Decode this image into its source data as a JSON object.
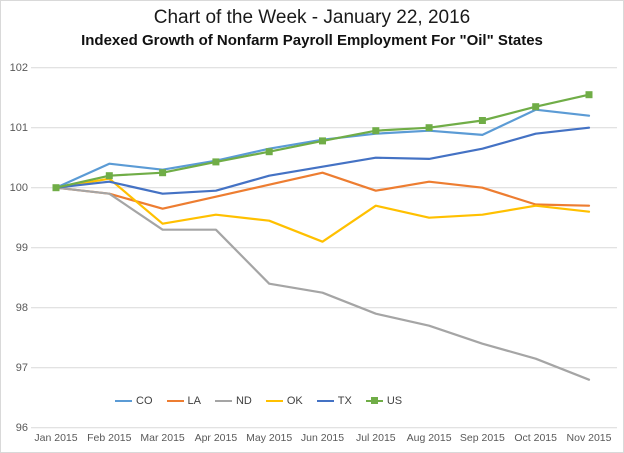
{
  "title": "Chart of the Week - January 22, 2016",
  "subtitle": "Indexed Growth of Nonfarm Payroll Employment For \"Oil\" States",
  "colors": {
    "gridline": "#d9d9d9",
    "axis_text": "#595959",
    "legend_text": "#404040"
  },
  "chart_data": {
    "type": "line",
    "title": "Chart of the Week - January 22, 2016",
    "subtitle": "Indexed Growth of Nonfarm Payroll Employment For \"Oil\" States",
    "xlabel": "",
    "ylabel": "",
    "ylim": [
      96,
      102
    ],
    "yticks": [
      96,
      97,
      98,
      99,
      100,
      101,
      102
    ],
    "grid": true,
    "legend_position": "bottom-inside",
    "categories": [
      "Jan 2015",
      "Feb 2015",
      "Mar 2015",
      "Apr 2015",
      "May 2015",
      "Jun 2015",
      "Jul 2015",
      "Aug 2015",
      "Sep 2015",
      "Oct 2015",
      "Nov 2015"
    ],
    "series": [
      {
        "name": "CO",
        "color": "#5B9BD5",
        "marker": "none",
        "values": [
          100,
          100.4,
          100.3,
          100.45,
          100.65,
          100.8,
          100.9,
          100.95,
          100.88,
          101.3,
          101.2
        ]
      },
      {
        "name": "LA",
        "color": "#ED7D31",
        "marker": "none",
        "values": [
          100,
          99.9,
          99.65,
          99.85,
          100.05,
          100.25,
          99.95,
          100.1,
          100.0,
          99.72,
          99.7
        ]
      },
      {
        "name": "ND",
        "color": "#A5A5A5",
        "marker": "none",
        "values": [
          100,
          99.9,
          99.3,
          99.3,
          98.4,
          98.25,
          97.9,
          97.7,
          97.4,
          97.15,
          96.8
        ]
      },
      {
        "name": "OK",
        "color": "#FFC000",
        "marker": "none",
        "values": [
          100,
          100.15,
          99.4,
          99.55,
          99.45,
          99.1,
          99.7,
          99.5,
          99.55,
          99.7,
          99.6
        ]
      },
      {
        "name": "TX",
        "color": "#4472C4",
        "marker": "none",
        "values": [
          100,
          100.1,
          99.9,
          99.95,
          100.2,
          100.35,
          100.5,
          100.48,
          100.65,
          100.9,
          101.0
        ]
      },
      {
        "name": "US",
        "color": "#70AD47",
        "marker": "square",
        "values": [
          100,
          100.2,
          100.25,
          100.43,
          100.6,
          100.78,
          100.95,
          101.0,
          101.12,
          101.35,
          101.55
        ]
      }
    ]
  }
}
